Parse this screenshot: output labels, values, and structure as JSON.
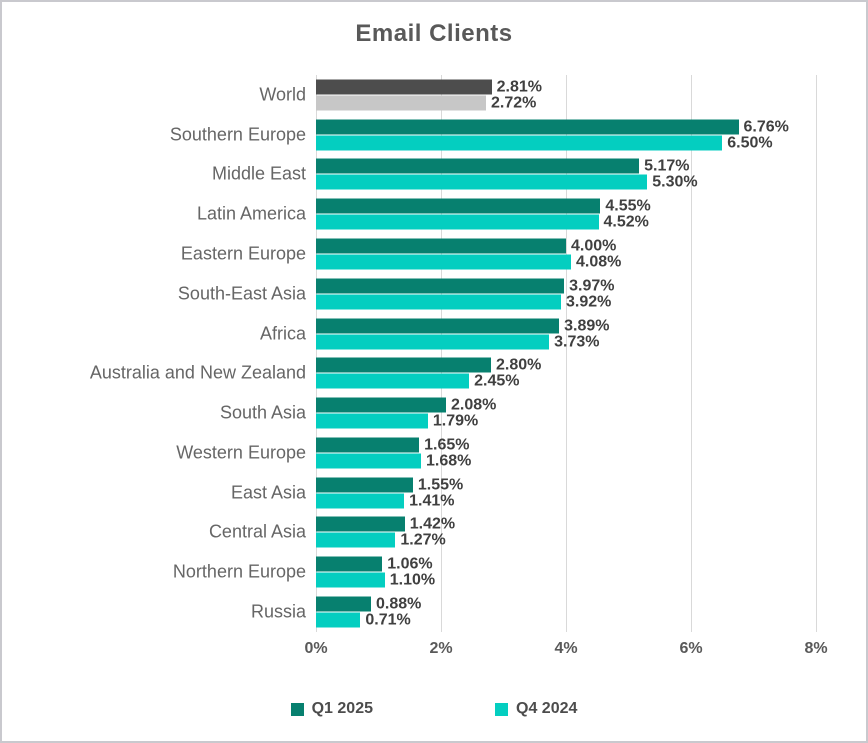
{
  "title": "Email Clients",
  "chart_data": {
    "type": "bar",
    "orientation": "horizontal",
    "title": "Email Clients",
    "categories": [
      "World",
      "Southern Europe",
      "Middle East",
      "Latin America",
      "Eastern Europe",
      "South-East Asia",
      "Africa",
      "Australia and New Zealand",
      "South Asia",
      "Western Europe",
      "East Asia",
      "Central Asia",
      "Northern Europe",
      "Russia"
    ],
    "series": [
      {
        "name": "Q1 2025",
        "color": "#07806F",
        "values": [
          2.81,
          6.76,
          5.17,
          4.55,
          4.0,
          3.97,
          3.89,
          2.8,
          2.08,
          1.65,
          1.55,
          1.42,
          1.06,
          0.88
        ],
        "labels": [
          "2.81%",
          "6.76%",
          "5.17%",
          "4.55%",
          "4.00%",
          "3.97%",
          "3.89%",
          "2.80%",
          "2.08%",
          "1.65%",
          "1.55%",
          "1.42%",
          "1.06%",
          "0.88%"
        ]
      },
      {
        "name": "Q4 2024",
        "color": "#04CEC0",
        "values": [
          2.72,
          6.5,
          5.3,
          4.52,
          4.08,
          3.92,
          3.73,
          2.45,
          1.79,
          1.68,
          1.41,
          1.27,
          1.1,
          0.71
        ],
        "labels": [
          "2.72%",
          "6.50%",
          "5.30%",
          "4.52%",
          "4.08%",
          "3.92%",
          "3.73%",
          "2.45%",
          "1.79%",
          "1.68%",
          "1.41%",
          "1.27%",
          "1.10%",
          "0.71%"
        ]
      }
    ],
    "world_bar_colors": {
      "q1_2025": "#4D4D4D",
      "q4_2024": "#C7C7C7"
    },
    "xlim": [
      0,
      8
    ],
    "x_ticks": [
      {
        "value": 0,
        "label": "0%"
      },
      {
        "value": 2,
        "label": "2%"
      },
      {
        "value": 4,
        "label": "4%"
      },
      {
        "value": 6,
        "label": "6%"
      },
      {
        "value": 8,
        "label": "8%"
      }
    ],
    "grid": true,
    "legend_position": "bottom",
    "colors": {
      "gridline": "#d9d9d9",
      "title_text": "#595959",
      "category_text": "#666666",
      "value_text": "#404040",
      "axis_text": "#595959",
      "legend_text": "#4c4c4c",
      "frame_border": "#c9c9ce",
      "background": "#ffffff"
    }
  }
}
